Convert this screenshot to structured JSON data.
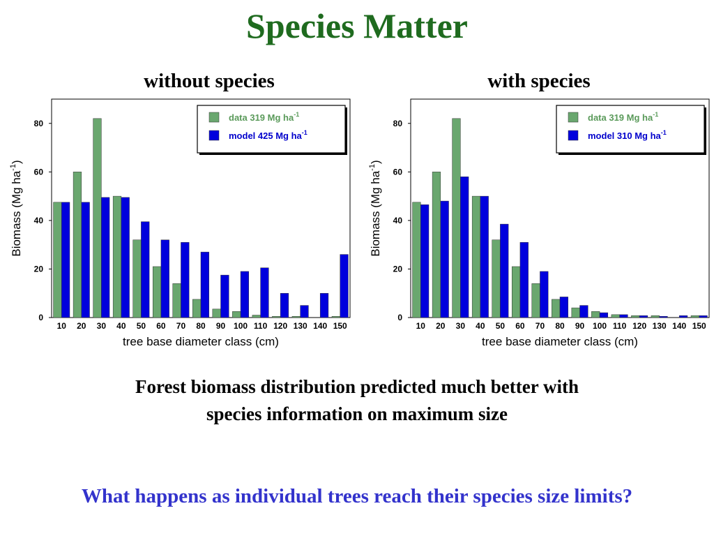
{
  "slide": {
    "title": "Species Matter",
    "caption_line1": "Forest biomass distribution predicted much better with",
    "caption_line2": "species information on maximum size",
    "question": "What happens as individual trees reach their species size limits?"
  },
  "colors": {
    "title": "#1f6b1f",
    "data_bar": "#6aa76f",
    "model_bar": "#0000dd",
    "data_legend_text": "#5a9a5a",
    "model_legend_text": "#0000cc",
    "question": "#3333cc"
  },
  "chart_data": [
    {
      "type": "bar",
      "title": "without species",
      "xlabel": "tree base diameter class (cm)",
      "ylabel": "Biomass (Mg ha",
      "ylabel_sup": "-1",
      "ylabel_end": ")",
      "categories": [
        "10",
        "20",
        "30",
        "40",
        "50",
        "60",
        "70",
        "80",
        "90",
        "100",
        "110",
        "120",
        "130",
        "140",
        "150"
      ],
      "yticks": [
        0,
        20,
        40,
        60,
        80
      ],
      "ylim": [
        0,
        90
      ],
      "grid": false,
      "legend_position": "top-right",
      "series": [
        {
          "name": "data 319 Mg ha",
          "sup": "-1",
          "color": "#6aa76f",
          "values": [
            47.5,
            60,
            82,
            50,
            32,
            21,
            14,
            7.5,
            3.5,
            2.5,
            1,
            0.5,
            0.5,
            0,
            0.5
          ]
        },
        {
          "name": "model 425 Mg ha",
          "sup": "-1",
          "color": "#0000dd",
          "values": [
            47.5,
            47.5,
            49.5,
            49.5,
            39.5,
            32,
            31,
            27,
            17.5,
            19,
            20.5,
            10,
            5,
            10,
            26
          ]
        }
      ]
    },
    {
      "type": "bar",
      "title": "with species",
      "xlabel": "tree base diameter class (cm)",
      "ylabel": "Biomass (Mg ha",
      "ylabel_sup": "-1",
      "ylabel_end": ")",
      "categories": [
        "10",
        "20",
        "30",
        "40",
        "50",
        "60",
        "70",
        "80",
        "90",
        "100",
        "110",
        "120",
        "130",
        "140",
        "150"
      ],
      "yticks": [
        0,
        20,
        40,
        60,
        80
      ],
      "ylim": [
        0,
        90
      ],
      "grid": false,
      "legend_position": "top-right",
      "series": [
        {
          "name": "data 319 Mg ha",
          "sup": "-1",
          "color": "#6aa76f",
          "values": [
            47.5,
            60,
            82,
            50,
            32,
            21,
            14,
            7.5,
            4,
            2.5,
            1.2,
            0.8,
            0.8,
            0,
            0.8
          ]
        },
        {
          "name": "model 310 Mg ha",
          "sup": "-1",
          "color": "#0000dd",
          "values": [
            46.5,
            48,
            58,
            50,
            38.5,
            31,
            19,
            8.5,
            5,
            2,
            1.2,
            0.8,
            0.5,
            0.8,
            0.8
          ]
        }
      ]
    }
  ]
}
